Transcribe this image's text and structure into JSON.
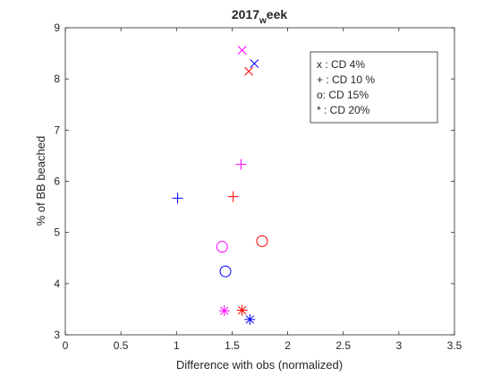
{
  "chart_data": {
    "type": "scatter",
    "title": "2017_week",
    "title_parts": {
      "main": "2017",
      "sub": "w",
      "tail": "eek"
    },
    "xlabel": "Difference with obs (normalized)",
    "ylabel": "% of BB beached",
    "xlim": [
      0,
      3.5
    ],
    "ylim": [
      3,
      9
    ],
    "xticks": [
      "0",
      "0.5",
      "1",
      "1.5",
      "2",
      "2.5",
      "3",
      "3.5"
    ],
    "yticks": [
      "3",
      "4",
      "5",
      "6",
      "7",
      "8",
      "9"
    ],
    "grid": false,
    "legend_position": "top-right",
    "legend": [
      "x : CD 4%",
      "+ : CD 10 %",
      "o:  CD 15%",
      "* : CD 20%"
    ],
    "colors": {
      "blue": "#0000ff",
      "red": "#ff0000",
      "magenta": "#ff00ff"
    },
    "points": [
      {
        "x": 1.59,
        "y": 8.56,
        "marker": "x",
        "color": "magenta"
      },
      {
        "x": 1.7,
        "y": 8.3,
        "marker": "x",
        "color": "blue"
      },
      {
        "x": 1.65,
        "y": 8.15,
        "marker": "x",
        "color": "red"
      },
      {
        "x": 1.58,
        "y": 6.33,
        "marker": "+",
        "color": "magenta"
      },
      {
        "x": 1.01,
        "y": 5.67,
        "marker": "+",
        "color": "blue"
      },
      {
        "x": 1.51,
        "y": 5.7,
        "marker": "+",
        "color": "red"
      },
      {
        "x": 1.41,
        "y": 4.72,
        "marker": "o",
        "color": "magenta"
      },
      {
        "x": 1.44,
        "y": 4.24,
        "marker": "o",
        "color": "blue"
      },
      {
        "x": 1.77,
        "y": 4.83,
        "marker": "o",
        "color": "red"
      },
      {
        "x": 1.43,
        "y": 3.47,
        "marker": "*",
        "color": "magenta"
      },
      {
        "x": 1.66,
        "y": 3.3,
        "marker": "*",
        "color": "blue"
      },
      {
        "x": 1.59,
        "y": 3.48,
        "marker": "*",
        "color": "red"
      }
    ]
  }
}
